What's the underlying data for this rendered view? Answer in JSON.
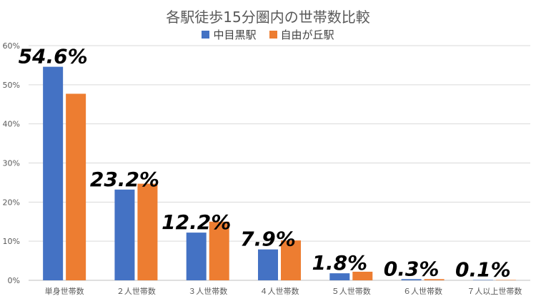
{
  "chart_data": {
    "type": "bar",
    "title": "各駅徒歩15分圏内の世帯数比較",
    "categories": [
      "単身世帯数",
      "２人世帯数",
      "３人世帯数",
      "４人世帯数",
      "５人世帯数",
      "６人世帯数",
      "７人以上世帯数"
    ],
    "series": [
      {
        "name": "中目黒駅",
        "color": "#4472C4",
        "values": [
          54.6,
          23.2,
          12.2,
          7.9,
          1.8,
          0.3,
          0.1
        ]
      },
      {
        "name": "自由が丘駅",
        "color": "#ED7D31",
        "values": [
          47.7,
          24.7,
          15.0,
          10.2,
          2.2,
          0.3,
          0.1
        ]
      }
    ],
    "data_labels": [
      "54.6%",
      "23.2%",
      "12.2%",
      "7.9%",
      "1.8%",
      "0.3%",
      "0.1%"
    ],
    "ylim": [
      0,
      60
    ],
    "yticks": [
      "0%",
      "10%",
      "20%",
      "30%",
      "40%",
      "50%",
      "60%"
    ],
    "grid": true,
    "legend": "top-center"
  }
}
